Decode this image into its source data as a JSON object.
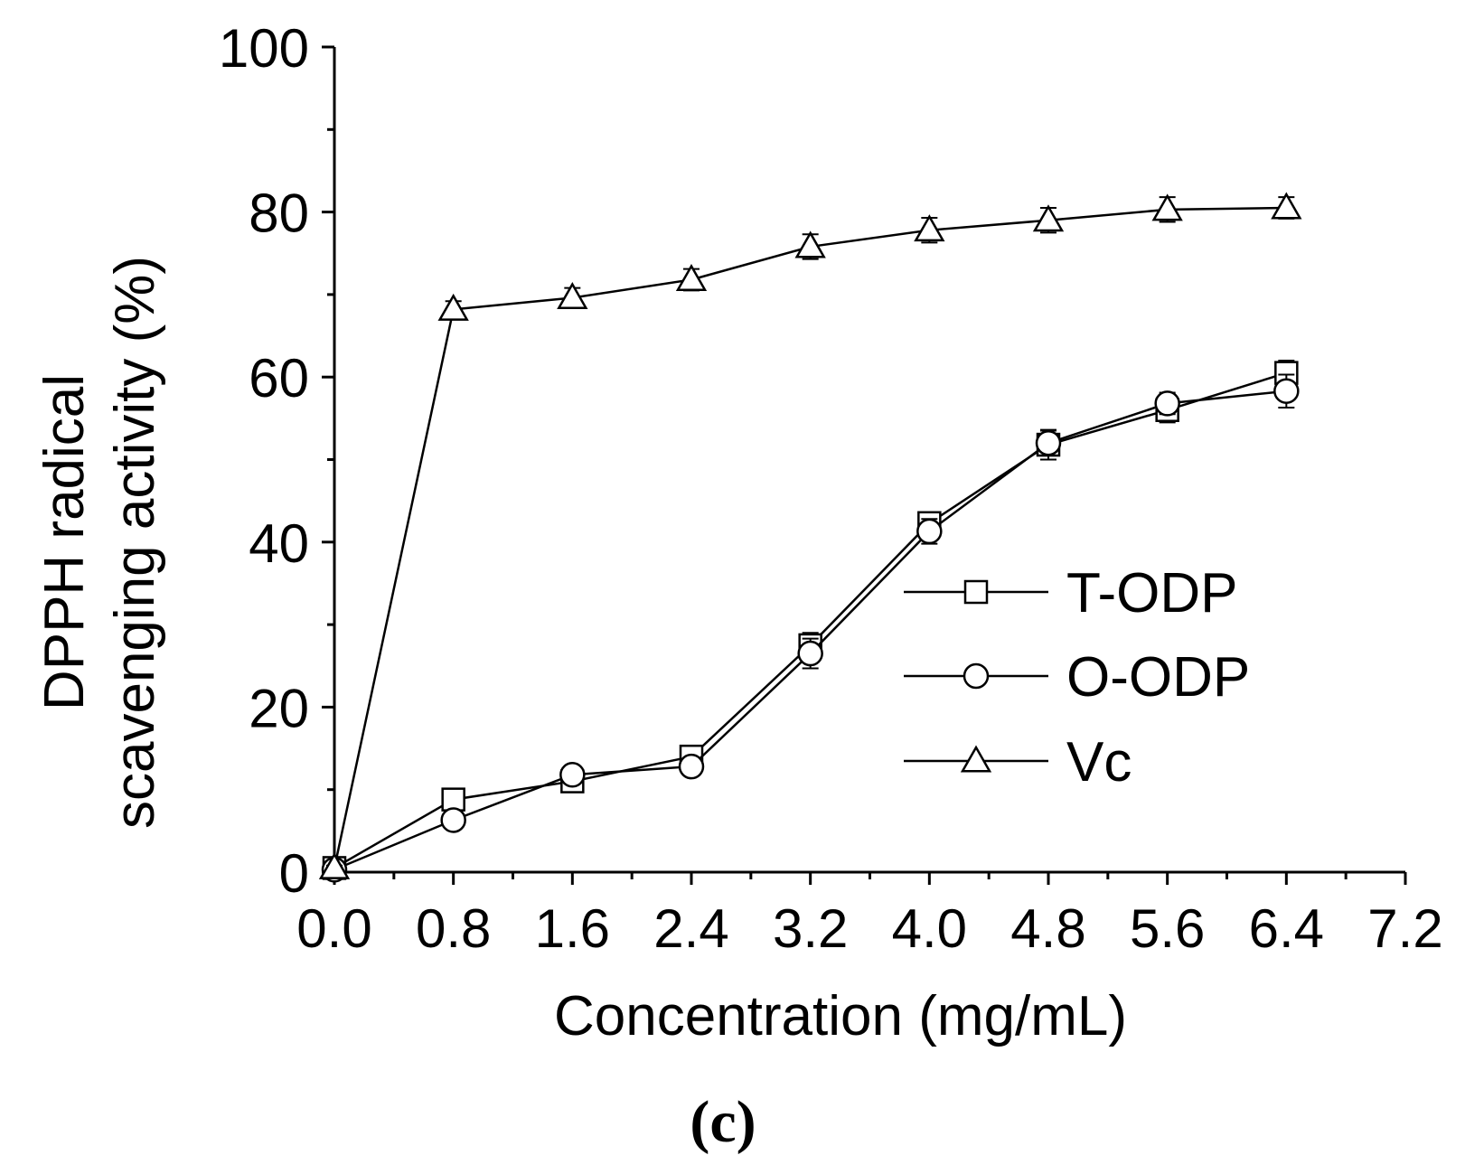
{
  "chart_data": {
    "type": "line",
    "title": "",
    "panel_label": "(c)",
    "xlabel": "Concentration (mg/mL)",
    "ylabel_line1": "DPPH radical",
    "ylabel_line2": "scavenging activity (%)",
    "xlim": [
      0.0,
      7.2
    ],
    "ylim": [
      0,
      100
    ],
    "xticks": [
      "0.0",
      "0.8",
      "1.6",
      "2.4",
      "3.2",
      "4.0",
      "4.8",
      "5.6",
      "6.4",
      "7.2"
    ],
    "yticks": [
      "0",
      "20",
      "40",
      "60",
      "80",
      "100"
    ],
    "grid": false,
    "legend_position": "center-right",
    "x": [
      0.0,
      0.8,
      1.6,
      2.4,
      3.2,
      4.0,
      4.8,
      5.6,
      6.4
    ],
    "series": [
      {
        "name": "T-ODP",
        "marker": "square",
        "values": [
          0.5,
          8.8,
          11.0,
          14.0,
          27.5,
          42.3,
          51.8,
          56.0,
          60.5
        ],
        "errors": [
          0.3,
          0.8,
          0.8,
          1.0,
          1.5,
          1.2,
          1.8,
          1.5,
          1.5
        ]
      },
      {
        "name": "O-ODP",
        "marker": "circle",
        "values": [
          0.3,
          6.3,
          11.8,
          12.8,
          26.5,
          41.3,
          52.0,
          56.8,
          58.3
        ],
        "errors": [
          0.3,
          0.8,
          1.0,
          0.8,
          1.8,
          1.5,
          1.5,
          1.3,
          2.0
        ]
      },
      {
        "name": "Vc",
        "marker": "triangle",
        "values": [
          0.5,
          68.2,
          69.6,
          71.8,
          75.8,
          77.8,
          79.0,
          80.3,
          80.5
        ],
        "errors": [
          0.3,
          1.0,
          1.2,
          1.3,
          1.5,
          1.5,
          1.5,
          1.5,
          1.3
        ]
      }
    ]
  }
}
